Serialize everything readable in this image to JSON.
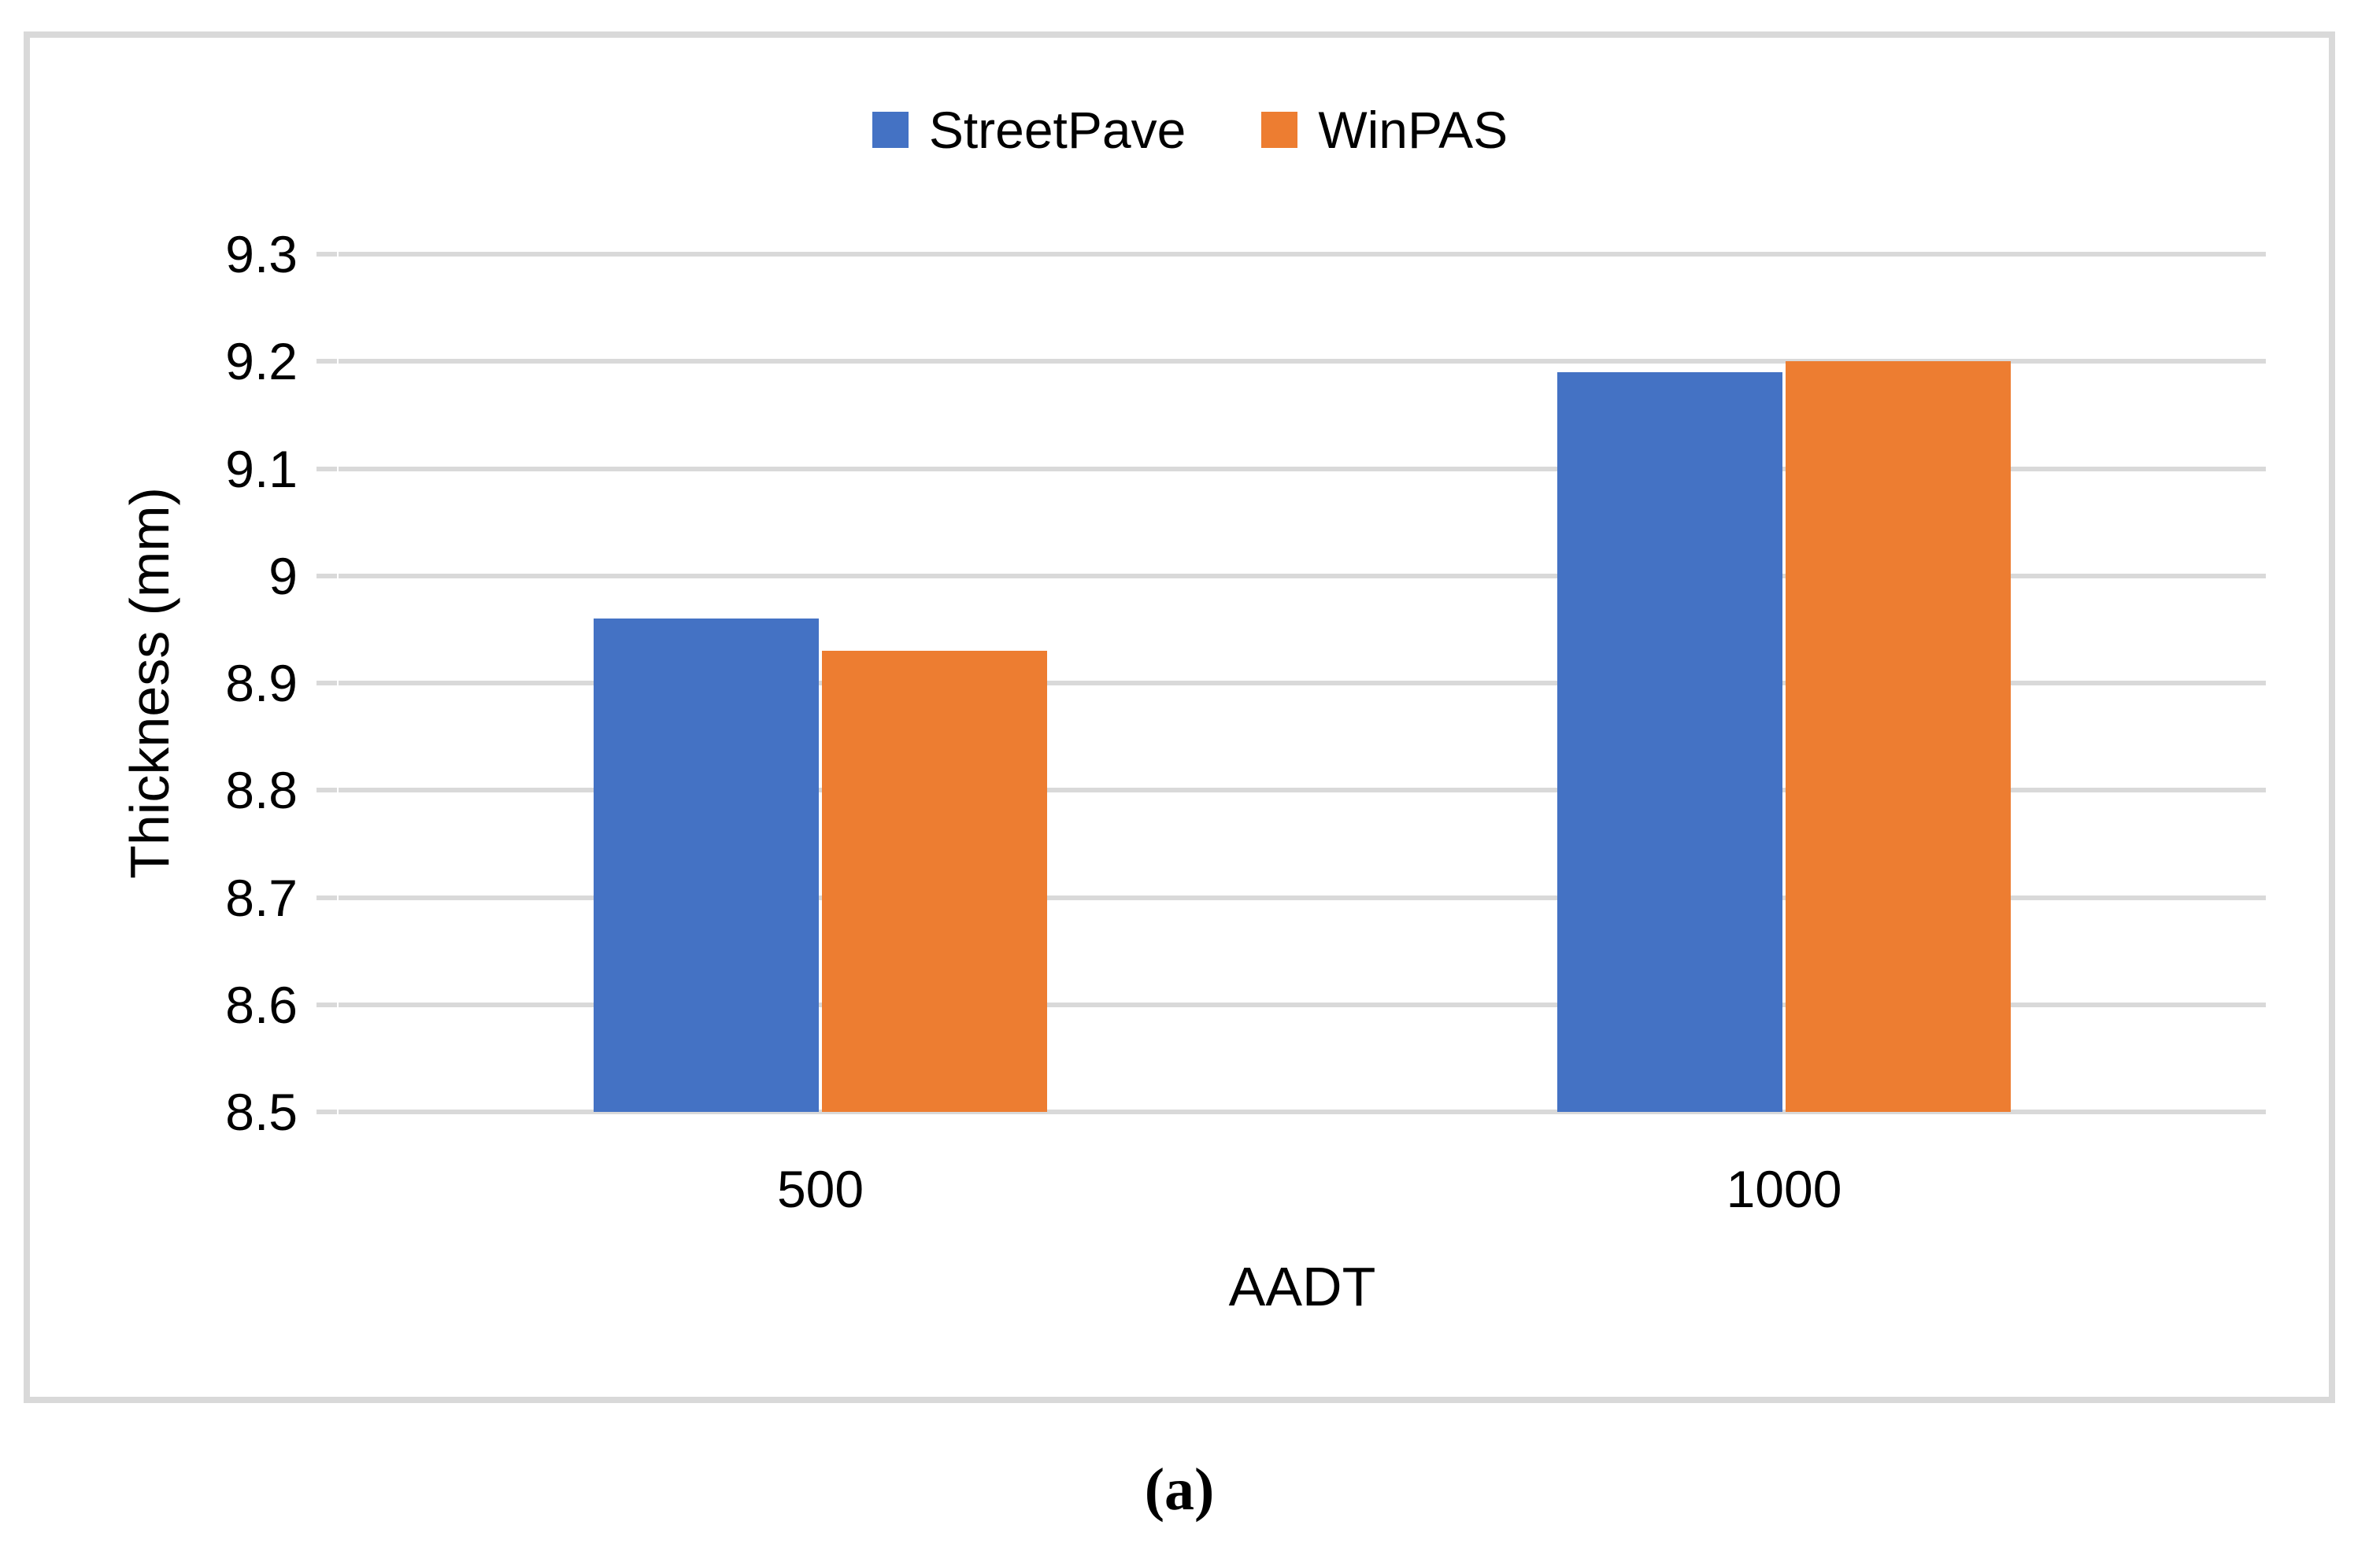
{
  "figure": {
    "caption": "(a)"
  },
  "chart_data": {
    "type": "bar",
    "title": "",
    "categories": [
      "500",
      "1000"
    ],
    "series": [
      {
        "name": "StreetPave",
        "color": "#4472C4",
        "values": [
          8.96,
          9.19
        ]
      },
      {
        "name": "WinPAS",
        "color": "#ED7D31",
        "values": [
          8.93,
          9.2
        ]
      }
    ],
    "xlabel": "AADT",
    "ylabel": "Thickness (mm)",
    "ylim": [
      8.5,
      9.3
    ],
    "ytick_labels": [
      "9.3",
      "9.2",
      "9.1",
      "9",
      "8.9",
      "8.8",
      "8.7",
      "8.6",
      "8.5"
    ],
    "grid": true,
    "legend_position": "top",
    "colors": {
      "gridline": "#D9D9D9",
      "frame": "#D9D9D9",
      "text": "#000000",
      "background": "#FFFFFF"
    }
  }
}
